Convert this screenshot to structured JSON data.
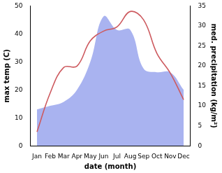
{
  "chart_data": {
    "type": "line",
    "x_label": "date (month)",
    "y_label": "max temp (C)",
    "y2_label": "med. precipitation (kg/m²)",
    "categories": [
      "Jan",
      "Feb",
      "Mar",
      "Apr",
      "May",
      "Jun",
      "Jul",
      "Aug",
      "Sep",
      "Oct",
      "Nov",
      "Dec"
    ],
    "series": [
      {
        "name": "med. precipitation",
        "type": "area",
        "axis": "y2",
        "color": "#a9b3f0",
        "values": [
          9.1,
          10,
          11,
          14,
          21,
          32.4,
          29,
          29,
          19.3,
          18.4,
          18.4,
          14
        ]
      },
      {
        "name": "max temp",
        "type": "line",
        "color": "#cd5a5f",
        "values": [
          5,
          19,
          28,
          28.5,
          37.5,
          41,
          42.5,
          48,
          45,
          33,
          26,
          16.5
        ]
      }
    ],
    "ylim": [
      0,
      50
    ],
    "yticks": [
      0,
      10,
      20,
      30,
      40,
      50
    ],
    "y2lim": [
      0,
      35
    ],
    "y2ticks": [
      0,
      5,
      10,
      15,
      20,
      25,
      30,
      35
    ],
    "grid": false
  }
}
